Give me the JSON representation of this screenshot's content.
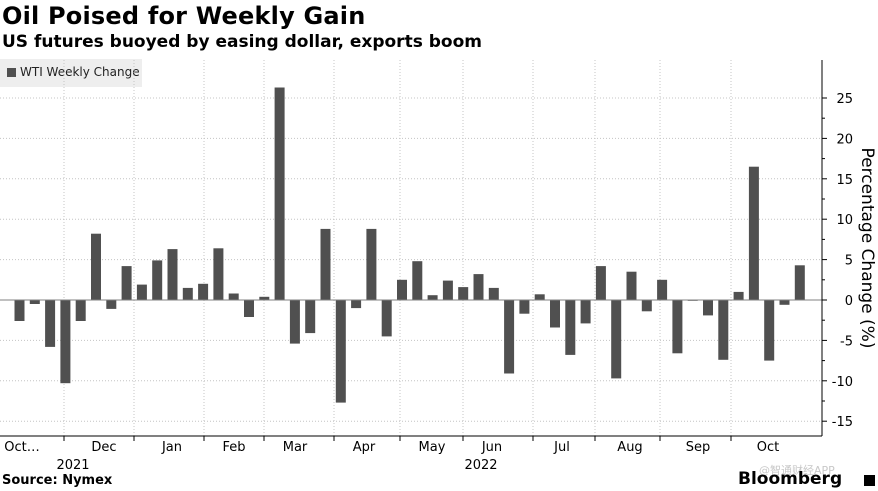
{
  "title": "Oil Poised for Weekly Gain",
  "subtitle": "US futures buoyed by easing dollar, exports boom",
  "source": "Source: Nymex",
  "brand": "Bloomberg",
  "watermark": "@智通财经APP",
  "colors": {
    "bar": "#505050",
    "zero_line": "#808080",
    "grid": "#c4c4c4",
    "legend_bg": "#eeeeee"
  },
  "chart_data": {
    "type": "bar",
    "title": "Oil Poised for Weekly Gain",
    "subtitle": "US futures buoyed by easing dollar, exports boom",
    "ylabel": "Percentage Change (%)",
    "ylim": [
      -17,
      30
    ],
    "yticks": [
      25,
      20,
      15,
      10,
      5,
      0,
      -5,
      -10,
      -15
    ],
    "grid": true,
    "legend_position": "top-left",
    "series": [
      {
        "name": "WTI Weekly Change",
        "values": [
          -2.6,
          -0.5,
          -5.8,
          -10.3,
          -2.6,
          8.2,
          -1.1,
          4.2,
          1.9,
          4.9,
          6.3,
          1.5,
          2.0,
          6.4,
          0.8,
          -2.1,
          0.4,
          26.3,
          -5.4,
          -4.1,
          8.8,
          -12.7,
          -1.0,
          8.8,
          -4.5,
          2.5,
          4.8,
          0.6,
          2.4,
          1.6,
          3.2,
          1.5,
          -9.1,
          -1.7,
          0.7,
          -3.4,
          -6.8,
          -2.9,
          4.2,
          -9.7,
          3.5,
          -1.4,
          2.5,
          -6.6,
          -0.1,
          -1.9,
          -7.4,
          1.0,
          16.5,
          -7.5,
          -0.6,
          4.3
        ]
      }
    ],
    "x_month_labels": [
      "Oct…",
      "Dec",
      "Jan",
      "Feb",
      "Mar",
      "Apr",
      "May",
      "Jun",
      "Jul",
      "Aug",
      "Sep",
      "Oct"
    ],
    "x_year_labels": [
      "2021",
      "2022"
    ]
  }
}
